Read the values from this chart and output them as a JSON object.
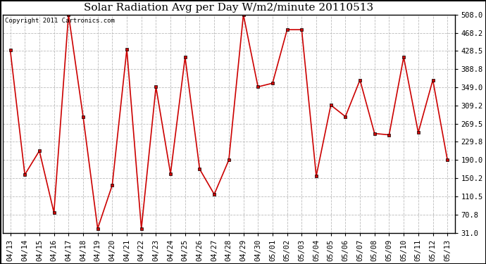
{
  "title": "Solar Radiation Avg per Day W/m2/minute 20110513",
  "copyright_text": "Copyright 2011 Cartronics.com",
  "dates": [
    "04/13",
    "04/14",
    "04/15",
    "04/16",
    "04/17",
    "04/18",
    "04/19",
    "04/20",
    "04/21",
    "04/22",
    "04/23",
    "04/24",
    "04/25",
    "04/26",
    "04/27",
    "04/28",
    "04/29",
    "04/30",
    "05/01",
    "05/02",
    "05/03",
    "05/04",
    "05/05",
    "05/06",
    "05/07",
    "05/08",
    "05/09",
    "05/10",
    "05/11",
    "05/12",
    "05/13"
  ],
  "values": [
    431,
    158,
    210,
    75,
    508,
    285,
    40,
    135,
    432,
    40,
    350,
    160,
    415,
    170,
    115,
    190,
    508,
    350,
    358,
    475,
    475,
    155,
    310,
    285,
    365,
    248,
    245,
    415,
    250,
    365,
    190
  ],
  "line_color": "#cc0000",
  "marker": "s",
  "marker_size": 3,
  "background_color": "#ffffff",
  "plot_bg_color": "#ffffff",
  "grid_color": "#bbbbbb",
  "ylim": [
    31.0,
    508.0
  ],
  "yticks": [
    31.0,
    70.8,
    110.5,
    150.2,
    190.0,
    229.8,
    269.5,
    309.2,
    349.0,
    388.8,
    428.5,
    468.2,
    508.0
  ],
  "title_fontsize": 11,
  "copyright_fontsize": 6.5,
  "tick_fontsize": 7.5,
  "border_color": "#000000"
}
